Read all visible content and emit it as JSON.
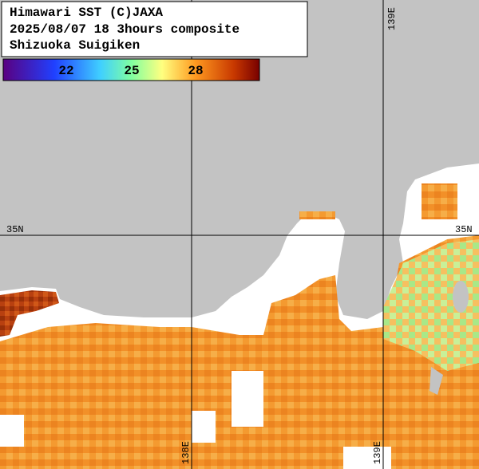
{
  "header": {
    "lines": [
      "Himawari SST (C)JAXA",
      "2025/08/07 18 3hours composite",
      "Shizuoka Suigiken"
    ]
  },
  "colorbar": {
    "labels": [
      22,
      25,
      28
    ]
  },
  "grid": {
    "latitude_labels": [
      "35N",
      "35N"
    ],
    "longitude_labels": [
      "139E",
      "138E",
      "139E"
    ]
  }
}
